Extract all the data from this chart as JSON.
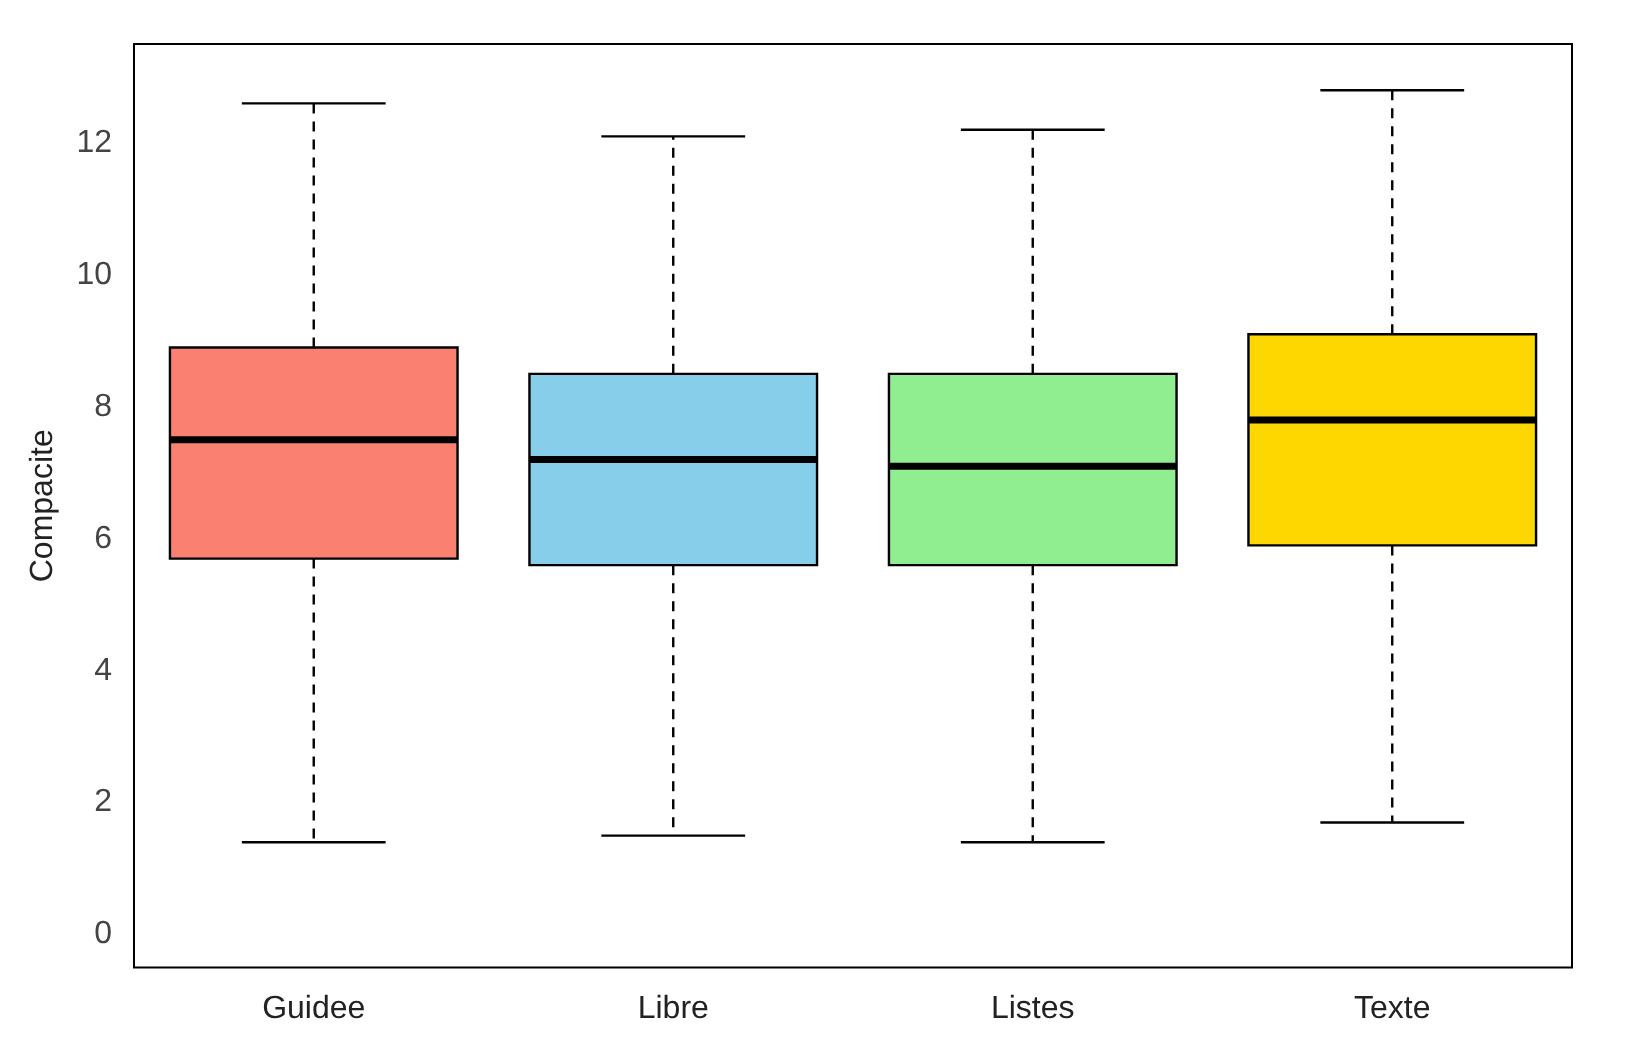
{
  "chart_data": {
    "type": "box",
    "ylabel": "Compacite",
    "categories": [
      "Guidee",
      "Libre",
      "Listes",
      "Texte"
    ],
    "boxes": [
      {
        "low": 1.4,
        "q1": 5.7,
        "median": 7.5,
        "q3": 8.9,
        "high": 12.6
      },
      {
        "low": 1.5,
        "q1": 5.6,
        "median": 7.2,
        "q3": 8.5,
        "high": 12.1
      },
      {
        "low": 1.4,
        "q1": 5.6,
        "median": 7.1,
        "q3": 8.5,
        "high": 12.2
      },
      {
        "low": 1.7,
        "q1": 5.9,
        "median": 7.8,
        "q3": 9.1,
        "high": 12.8
      }
    ],
    "colors": [
      "#fa8072",
      "#87ceeb",
      "#90ee90",
      "#ffd700"
    ],
    "ylim": [
      -0.5,
      13.5
    ],
    "yticks": [
      0,
      2,
      4,
      6,
      8,
      10,
      12
    ],
    "grid": false
  }
}
